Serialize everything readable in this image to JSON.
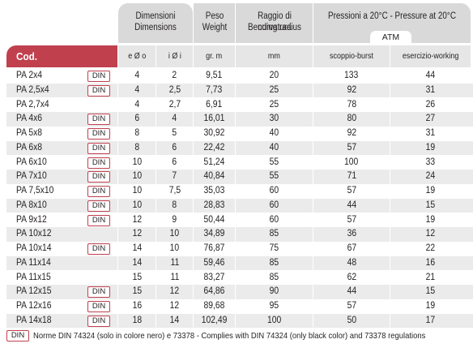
{
  "header": {
    "dimensions": [
      "Dimensioni",
      "Dimensions"
    ],
    "weight": [
      "Peso",
      "Weight"
    ],
    "bending": [
      "Raggio di curvatura",
      "Bending radius"
    ],
    "pressure": "Pressioni a 20°C - Pressure at 20°C",
    "atm": "ATM"
  },
  "subheader": {
    "cod": "Cod.",
    "od": "e Ø o",
    "id": "i Ø i",
    "weight_unit": "gr. m",
    "radius_unit": "mm",
    "burst": "scoppio-burst",
    "working": "esercizio-working"
  },
  "din_label": "DIN",
  "rows": [
    {
      "code": "PA 2x4",
      "din": true,
      "od": "4",
      "id": "2",
      "weight": "9,51",
      "radius": "20",
      "burst": "133",
      "working": "44"
    },
    {
      "code": "PA 2,5x4",
      "din": true,
      "od": "4",
      "id": "2,5",
      "weight": "7,73",
      "radius": "25",
      "burst": "92",
      "working": "31"
    },
    {
      "code": "PA 2,7x4",
      "din": false,
      "od": "4",
      "id": "2,7",
      "weight": "6,91",
      "radius": "25",
      "burst": "78",
      "working": "26"
    },
    {
      "code": "PA 4x6",
      "din": true,
      "od": "6",
      "id": "4",
      "weight": "16,01",
      "radius": "30",
      "burst": "80",
      "working": "27"
    },
    {
      "code": "PA 5x8",
      "din": true,
      "od": "8",
      "id": "5",
      "weight": "30,92",
      "radius": "40",
      "burst": "92",
      "working": "31"
    },
    {
      "code": "PA 6x8",
      "din": true,
      "od": "8",
      "id": "6",
      "weight": "22,42",
      "radius": "40",
      "burst": "57",
      "working": "19"
    },
    {
      "code": "PA 6x10",
      "din": true,
      "od": "10",
      "id": "6",
      "weight": "51,24",
      "radius": "55",
      "burst": "100",
      "working": "33"
    },
    {
      "code": "PA 7x10",
      "din": true,
      "od": "10",
      "id": "7",
      "weight": "40,84",
      "radius": "55",
      "burst": "71",
      "working": "24"
    },
    {
      "code": "PA 7,5x10",
      "din": true,
      "od": "10",
      "id": "7,5",
      "weight": "35,03",
      "radius": "60",
      "burst": "57",
      "working": "19"
    },
    {
      "code": "PA 8x10",
      "din": true,
      "od": "10",
      "id": "8",
      "weight": "28,83",
      "radius": "60",
      "burst": "44",
      "working": "15"
    },
    {
      "code": "PA 9x12",
      "din": true,
      "od": "12",
      "id": "9",
      "weight": "50,44",
      "radius": "60",
      "burst": "57",
      "working": "19"
    },
    {
      "code": "PA 10x12",
      "din": false,
      "od": "12",
      "id": "10",
      "weight": "34,89",
      "radius": "85",
      "burst": "36",
      "working": "12"
    },
    {
      "code": "PA 10x14",
      "din": true,
      "od": "14",
      "id": "10",
      "weight": "76,87",
      "radius": "75",
      "burst": "67",
      "working": "22"
    },
    {
      "code": "PA 11x14",
      "din": false,
      "od": "14",
      "id": "11",
      "weight": "59,46",
      "radius": "85",
      "burst": "48",
      "working": "16"
    },
    {
      "code": "PA 11x15",
      "din": false,
      "od": "15",
      "id": "11",
      "weight": "83,27",
      "radius": "85",
      "burst": "62",
      "working": "21"
    },
    {
      "code": "PA 12x15",
      "din": true,
      "od": "15",
      "id": "12",
      "weight": "64,86",
      "radius": "90",
      "burst": "44",
      "working": "15"
    },
    {
      "code": "PA 12x16",
      "din": true,
      "od": "16",
      "id": "12",
      "weight": "89,68",
      "radius": "95",
      "burst": "57",
      "working": "19"
    },
    {
      "code": "PA 14x18",
      "din": true,
      "od": "18",
      "id": "14",
      "weight": "102,49",
      "radius": "100",
      "burst": "50",
      "working": "17"
    }
  ],
  "footer": "Norme DIN 74324 (solo in colore nero) e 73378  -  Complies with DIN 74324 (only black color) and 73378 regulations",
  "colors": {
    "accent": "#c0404e",
    "header_grey": "#d9d9d9",
    "subheader_grey": "#e6e6e6",
    "row_alt": "#ebebeb"
  }
}
